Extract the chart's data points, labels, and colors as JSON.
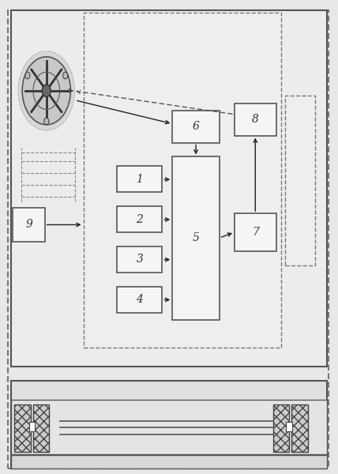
{
  "fig_width": 4.28,
  "fig_height": 6.0,
  "dpi": 100,
  "bg_color": "#e8e8e8",
  "box_fc": "#f0f0f0",
  "box_ec": "#555555",
  "arrow_color": "#222222",
  "dashed_color": "#777777",
  "wheel_hatch_color": "#999999",
  "boxes": {
    "1": [
      0.345,
      0.595,
      0.135,
      0.055
    ],
    "2": [
      0.345,
      0.51,
      0.135,
      0.055
    ],
    "3": [
      0.345,
      0.425,
      0.135,
      0.055
    ],
    "4": [
      0.345,
      0.34,
      0.135,
      0.055
    ],
    "5": [
      0.51,
      0.325,
      0.14,
      0.345
    ],
    "6": [
      0.51,
      0.7,
      0.14,
      0.068
    ],
    "7": [
      0.695,
      0.47,
      0.125,
      0.08
    ],
    "8": [
      0.695,
      0.715,
      0.125,
      0.068
    ],
    "9": [
      0.035,
      0.49,
      0.095,
      0.072
    ]
  }
}
